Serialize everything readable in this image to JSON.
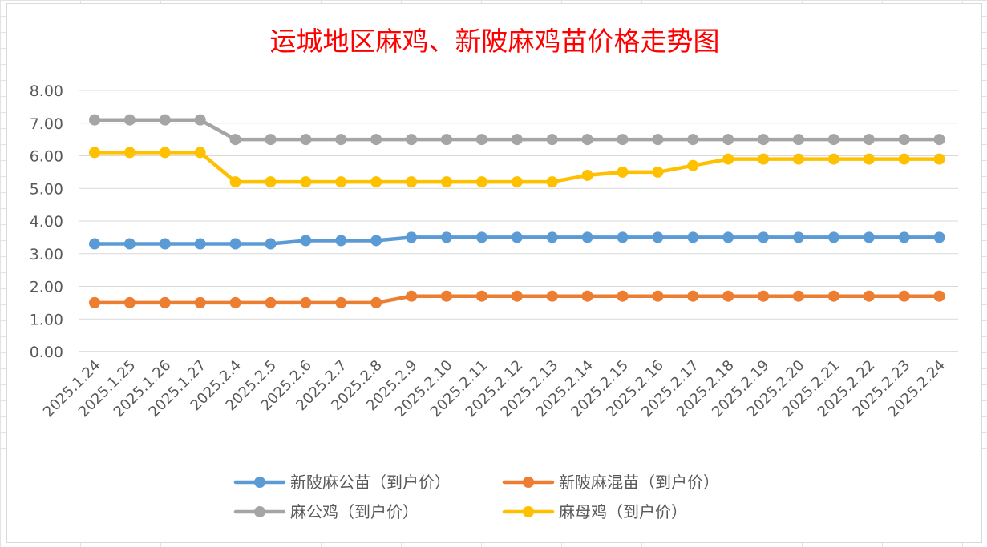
{
  "chart_data": {
    "type": "line",
    "title": "运城地区麻鸡、新陂麻鸡苗价格走势图",
    "xlabel": "",
    "ylabel": "",
    "ylim": [
      0,
      8
    ],
    "ytick_step": 1,
    "ytick_labels": [
      "0.00",
      "1.00",
      "2.00",
      "3.00",
      "4.00",
      "5.00",
      "6.00",
      "7.00",
      "8.00"
    ],
    "grid": "horizontal",
    "legend_position": "bottom",
    "categories": [
      "2025.1.24",
      "2025.1.25",
      "2025.1.26",
      "2025.1.27",
      "2025.2.4",
      "2025.2.5",
      "2025.2.6",
      "2025.2.7",
      "2025.2.8",
      "2025.2.9",
      "2025.2.10",
      "2025.2.11",
      "2025.2.12",
      "2025.2.13",
      "2025.2.14",
      "2025.2.15",
      "2025.2.16",
      "2025.2.17",
      "2025.2.18",
      "2025.2.19",
      "2025.2.20",
      "2025.2.21",
      "2025.2.22",
      "2025.2.23",
      "2025.2.24"
    ],
    "series": [
      {
        "name": "新陂麻公苗（到户价）",
        "color": "#5b9bd5",
        "values": [
          3.3,
          3.3,
          3.3,
          3.3,
          3.3,
          3.3,
          3.4,
          3.4,
          3.4,
          3.5,
          3.5,
          3.5,
          3.5,
          3.5,
          3.5,
          3.5,
          3.5,
          3.5,
          3.5,
          3.5,
          3.5,
          3.5,
          3.5,
          3.5,
          3.5
        ]
      },
      {
        "name": "新陂麻混苗（到户价）",
        "color": "#ed7d31",
        "values": [
          1.5,
          1.5,
          1.5,
          1.5,
          1.5,
          1.5,
          1.5,
          1.5,
          1.5,
          1.7,
          1.7,
          1.7,
          1.7,
          1.7,
          1.7,
          1.7,
          1.7,
          1.7,
          1.7,
          1.7,
          1.7,
          1.7,
          1.7,
          1.7,
          1.7
        ]
      },
      {
        "name": "麻公鸡（到户价）",
        "color": "#a5a5a5",
        "values": [
          7.1,
          7.1,
          7.1,
          7.1,
          6.5,
          6.5,
          6.5,
          6.5,
          6.5,
          6.5,
          6.5,
          6.5,
          6.5,
          6.5,
          6.5,
          6.5,
          6.5,
          6.5,
          6.5,
          6.5,
          6.5,
          6.5,
          6.5,
          6.5,
          6.5
        ]
      },
      {
        "name": "麻母鸡（到户价）",
        "color": "#ffc000",
        "values": [
          6.1,
          6.1,
          6.1,
          6.1,
          5.2,
          5.2,
          5.2,
          5.2,
          5.2,
          5.2,
          5.2,
          5.2,
          5.2,
          5.2,
          5.4,
          5.5,
          5.5,
          5.7,
          5.9,
          5.9,
          5.9,
          5.9,
          5.9,
          5.9,
          5.9
        ]
      }
    ]
  }
}
